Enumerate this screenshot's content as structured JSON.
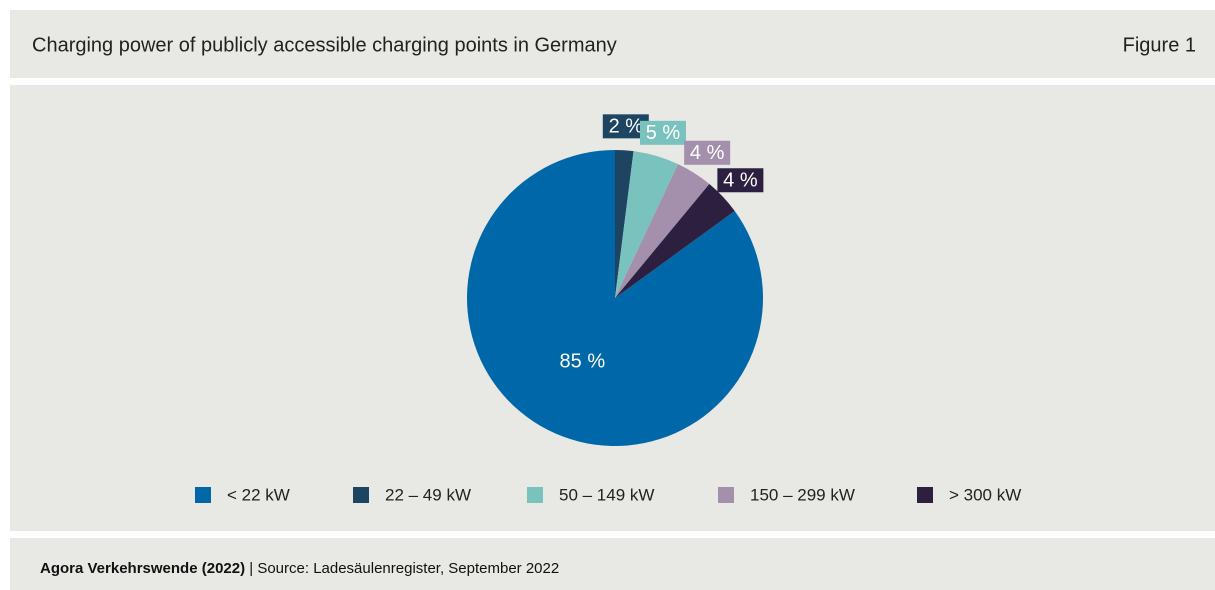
{
  "header": {
    "title": "Charging power of publicly accessible charging points in Germany",
    "figure": "Figure 1"
  },
  "chart_data": {
    "type": "pie",
    "categories": [
      "< 22 kW",
      "22 – 49 kW",
      "50 – 149 kW",
      "150 – 299 kW",
      "> 300 kW"
    ],
    "values": [
      85,
      2,
      5,
      4,
      4
    ],
    "value_labels": [
      "85 %",
      "2 %",
      "5 %",
      "4 %",
      "4 %"
    ],
    "colors": [
      "#0068a8",
      "#1d4461",
      "#7ac2bd",
      "#a48fad",
      "#2c1f3f"
    ],
    "legend": "bottom"
  },
  "footer": {
    "author": "Agora Verkehrswende (2022)",
    "source": "| Source: Ladesäulenregister, September 2022"
  }
}
